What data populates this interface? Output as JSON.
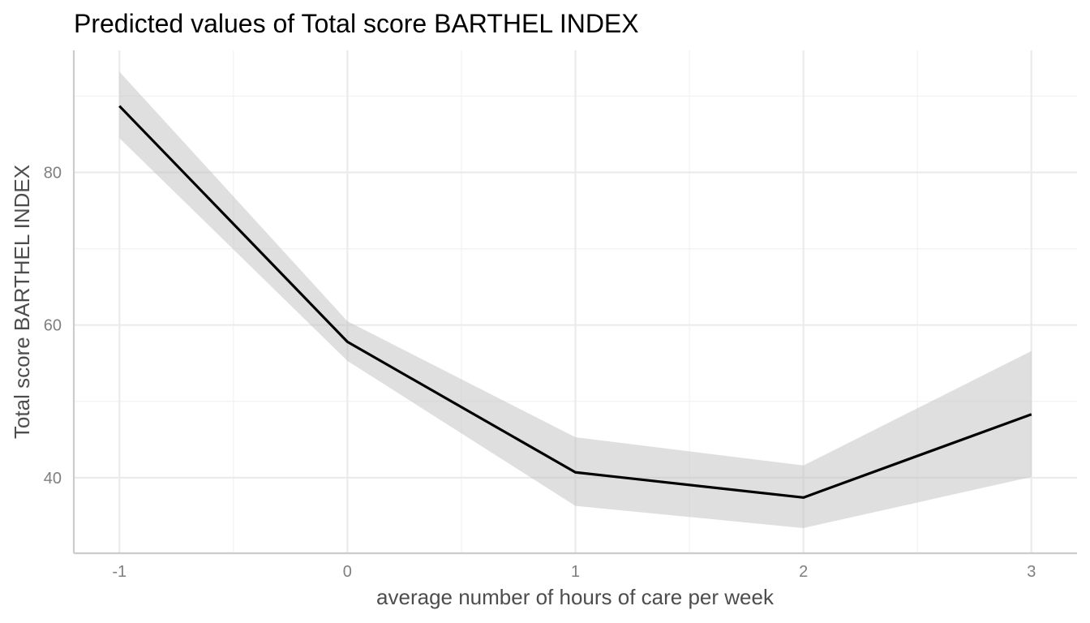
{
  "chart_data": {
    "type": "line",
    "title": "Predicted values of Total score BARTHEL INDEX",
    "xlabel": "average number of hours of care per week",
    "ylabel": "Total score BARTHEL INDEX",
    "x": [
      -1,
      0,
      1,
      2,
      3
    ],
    "series": [
      {
        "values": [
          88.7,
          57.8,
          40.7,
          37.4,
          48.3
        ],
        "ci_low": [
          84.5,
          55.3,
          36.3,
          33.4,
          40.1
        ],
        "ci_high": [
          93.2,
          60.5,
          45.3,
          41.6,
          56.6
        ],
        "color": "#000000",
        "band_color": "#bfbfbf"
      }
    ],
    "xlim": [
      -1.2,
      3.2
    ],
    "ylim": [
      30.1,
      96.0
    ],
    "x_ticks": [
      -1,
      0,
      1,
      2,
      3
    ],
    "x_tick_labels": [
      "-1",
      "0",
      "1",
      "2",
      "3"
    ],
    "y_ticks": [
      40,
      60,
      80
    ],
    "y_tick_labels": [
      "40",
      "60",
      "80"
    ],
    "x_minor_ticks": [
      -0.5,
      0.5,
      1.5,
      2.5
    ],
    "y_minor_ticks": [
      50,
      70,
      90
    ],
    "grid": true,
    "legend": "none"
  }
}
